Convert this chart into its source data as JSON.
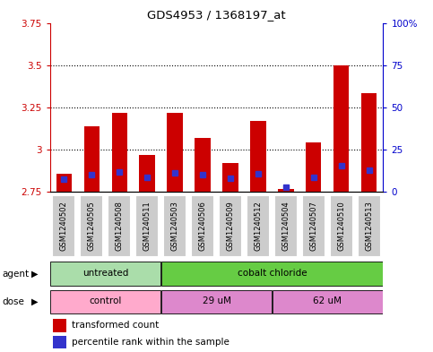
{
  "title": "GDS4953 / 1368197_at",
  "samples": [
    "GSM1240502",
    "GSM1240505",
    "GSM1240508",
    "GSM1240511",
    "GSM1240503",
    "GSM1240506",
    "GSM1240509",
    "GSM1240512",
    "GSM1240504",
    "GSM1240507",
    "GSM1240510",
    "GSM1240513"
  ],
  "red_values": [
    2.855,
    3.14,
    3.22,
    2.97,
    3.22,
    3.07,
    2.92,
    3.17,
    2.765,
    3.04,
    3.5,
    3.335
  ],
  "blue_percentiles": [
    7.5,
    10.0,
    12.0,
    8.5,
    11.0,
    10.0,
    8.0,
    10.5,
    3.0,
    8.5,
    15.5,
    13.0
  ],
  "ymin": 2.75,
  "ymax": 3.75,
  "yticks": [
    2.75,
    3.0,
    3.25,
    3.5,
    3.75
  ],
  "ytick_labels": [
    "2.75",
    "3",
    "3.25",
    "3.5",
    "3.75"
  ],
  "right_yticks": [
    0,
    25,
    50,
    75,
    100
  ],
  "right_ytick_labels": [
    "0",
    "25",
    "50",
    "75",
    "100%"
  ],
  "bar_color": "#cc0000",
  "blue_color": "#3333cc",
  "bar_width": 0.55,
  "agent_groups": [
    {
      "label": "untreated",
      "start": 0,
      "end": 4,
      "color": "#aaddaa"
    },
    {
      "label": "cobalt chloride",
      "start": 4,
      "end": 12,
      "color": "#66cc44"
    }
  ],
  "dose_groups": [
    {
      "label": "control",
      "start": 0,
      "end": 4,
      "color": "#ffaacc"
    },
    {
      "label": "29 uM",
      "start": 4,
      "end": 8,
      "color": "#dd88cc"
    },
    {
      "label": "62 uM",
      "start": 8,
      "end": 12,
      "color": "#dd88cc"
    }
  ],
  "plot_bg": "white",
  "left_axis_color": "#cc0000",
  "right_axis_color": "#0000cc",
  "sample_box_color": "#cccccc",
  "sample_box_edge": "#ffffff"
}
